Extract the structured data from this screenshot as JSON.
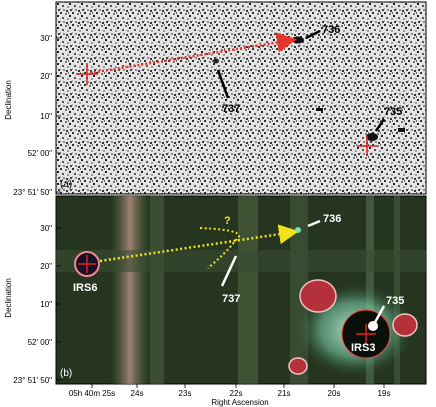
{
  "figure": {
    "y_axis_title": "Declination",
    "x_axis_title": "Right Ascension",
    "top_panel": {
      "tag": "(a)",
      "y_ticks": [
        "30\"",
        "20\"",
        "10\"",
        "52' 00\"",
        "23° 51' 50\""
      ],
      "labels": {
        "obj_736": "736",
        "obj_737": "737",
        "obj_735": "735"
      }
    },
    "bottom_panel": {
      "tag": "(b)",
      "y_ticks": [
        "30\"",
        "20\"",
        "10\"",
        "52' 00\"",
        "23° 51' 50\""
      ],
      "x_ticks": [
        "05h 40m 25s",
        "24s",
        "23s",
        "22s",
        "21s",
        "20s",
        "19s"
      ],
      "labels": {
        "obj_736": "736",
        "obj_737": "737",
        "obj_735": "735",
        "irs6": "IRS6",
        "irs3": "IRS3",
        "question": "?"
      }
    },
    "colors": {
      "arrow_top": "#e8352b",
      "arrow_bottom": "#f2e21c",
      "marker_cross": "#e02020",
      "label_white": "#ffffff"
    }
  }
}
